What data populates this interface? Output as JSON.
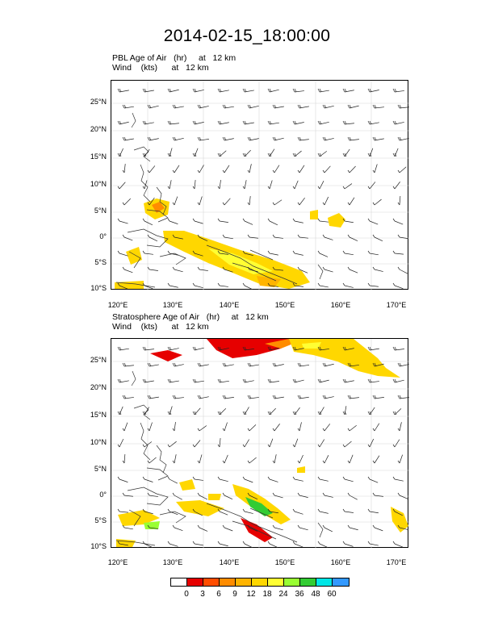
{
  "title": "2014-02-15_18:00:00",
  "panels": [
    {
      "line1": "PBL Age of Air   (hr)     at   12 km",
      "line2": "Wind    (kts)      at   12 km"
    },
    {
      "line1": "Stratosphere Age of Air   (hr)     at   12 km",
      "line2": "Wind    (kts)      at   12 km"
    }
  ],
  "lat_labels": [
    "25°N",
    "20°N",
    "15°N",
    "10°N",
    "5°N",
    "0°",
    "5°S",
    "10°S"
  ],
  "lon_labels": [
    "120°E",
    "130°E",
    "140°E",
    "150°E",
    "160°E",
    "170°E"
  ],
  "colorbar": {
    "labels": [
      "0",
      "3",
      "6",
      "9",
      "12",
      "18",
      "24",
      "36",
      "48",
      "60"
    ],
    "colors": [
      "#ffffff",
      "#e60000",
      "#ff4d00",
      "#ff8c00",
      "#ffb400",
      "#ffd700",
      "#ffff33",
      "#99ff33",
      "#33cc33",
      "#00e6e6",
      "#3399ff",
      "#0000b3"
    ]
  }
}
